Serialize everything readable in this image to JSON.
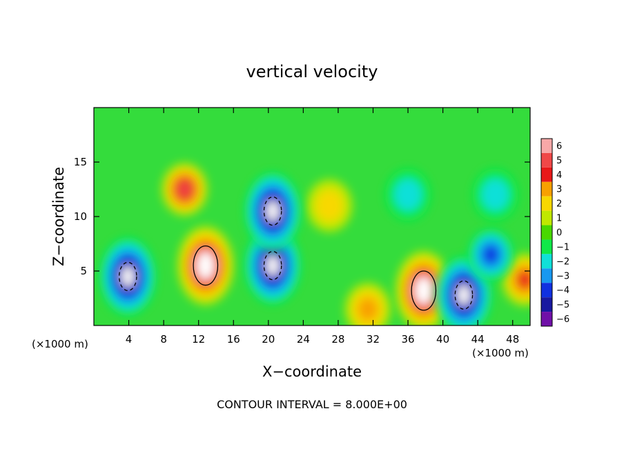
{
  "chart_data": {
    "type": "heatmap",
    "title": "vertical velocity",
    "xlabel": "X−coordinate",
    "ylabel": "Z−coordinate",
    "x_unit_left": "(×1000 m)",
    "x_unit_right": "(×1000 m)",
    "footer": "CONTOUR INTERVAL = 8.000E+00",
    "xlim": [
      0,
      50
    ],
    "ylim": [
      0,
      20
    ],
    "xticks": [
      "4",
      "8",
      "12",
      "16",
      "20",
      "24",
      "28",
      "32",
      "36",
      "40",
      "44",
      "48"
    ],
    "yticks": [
      "5",
      "10",
      "15"
    ],
    "colorbar": {
      "levels": [
        "6",
        "5",
        "4",
        "3",
        "2",
        "1",
        "0",
        "−1",
        "−2",
        "−3",
        "−4",
        "−5",
        "−6"
      ],
      "colors": [
        "#f8a8a8",
        "#f04848",
        "#e81818",
        "#f8a000",
        "#f8d800",
        "#c0e800",
        "#48d800",
        "#10e848",
        "#10e0d8",
        "#1898f0",
        "#1030e0",
        "#1818a0",
        "#7010a8"
      ]
    },
    "background_color": "#34dc3c",
    "features": [
      {
        "kind": "updraft",
        "x": 12.8,
        "z": 5.5,
        "peak": 6
      },
      {
        "kind": "updraft",
        "x": 10.4,
        "z": 12.5,
        "peak": 5
      },
      {
        "kind": "updraft",
        "x": 37.8,
        "z": 3.2,
        "peak": 6
      },
      {
        "kind": "updraft",
        "x": 49.4,
        "z": 4.2,
        "peak": 4
      },
      {
        "kind": "updraft",
        "x": 27.0,
        "z": 11.0,
        "peak": 2
      },
      {
        "kind": "updraft",
        "x": 31.4,
        "z": 1.5,
        "peak": 3
      },
      {
        "kind": "downdraft",
        "x": 3.9,
        "z": 4.5,
        "peak": -6
      },
      {
        "kind": "downdraft",
        "x": 20.5,
        "z": 5.5,
        "peak": -6
      },
      {
        "kind": "downdraft",
        "x": 20.5,
        "z": 10.5,
        "peak": -6
      },
      {
        "kind": "downdraft",
        "x": 42.4,
        "z": 2.8,
        "peak": -6
      },
      {
        "kind": "downdraft",
        "x": 45.5,
        "z": 6.5,
        "peak": -4
      },
      {
        "kind": "downdraft",
        "x": 36.0,
        "z": 12.0,
        "peak": -2
      },
      {
        "kind": "downdraft",
        "x": 46.0,
        "z": 12.0,
        "peak": -2
      }
    ]
  }
}
